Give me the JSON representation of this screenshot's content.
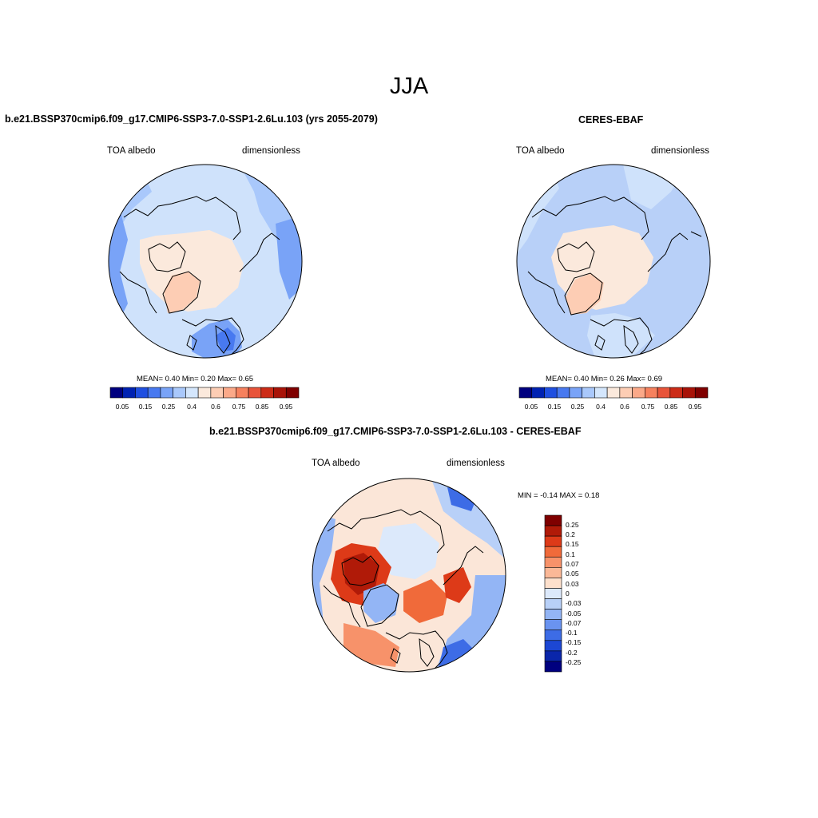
{
  "figure": {
    "title": "JJA"
  },
  "panels": [
    {
      "title": "b.e21.BSSP370cmip6.f09_g17.CMIP6-SSP3-7.0-SSP1-2.6Lu.103 (yrs 2055-2079)",
      "left_label": "TOA albedo",
      "right_label": "dimensionless",
      "stats": "MEAN=   0.40  Min=   0.20  Max=   0.65",
      "colorbar_ticks": [
        "0.05",
        "0.15",
        "0.25",
        "0.4",
        "0.6",
        "0.75",
        "0.85",
        "0.95"
      ]
    },
    {
      "title": "CERES-EBAF",
      "left_label": "TOA albedo",
      "right_label": "dimensionless",
      "stats": "MEAN=   0.40  Min=   0.26  Max=   0.69",
      "colorbar_ticks": [
        "0.05",
        "0.15",
        "0.25",
        "0.4",
        "0.6",
        "0.75",
        "0.85",
        "0.95"
      ]
    },
    {
      "title": "b.e21.BSSP370cmip6.f09_g17.CMIP6-SSP3-7.0-SSP1-2.6Lu.103 - CERES-EBAF",
      "left_label": "TOA albedo",
      "right_label": "dimensionless",
      "stats": "MIN =  -0.14 MAX =   0.18",
      "colorbar_ticks": [
        "0.25",
        "0.2",
        "0.15",
        "0.1",
        "0.07",
        "0.05",
        "0.03",
        "0",
        "-0.03",
        "-0.05",
        "-0.07",
        "-0.1",
        "-0.15",
        "-0.2",
        "-0.25"
      ]
    }
  ],
  "colors": {
    "albedo_scale": [
      "#00007f",
      "#0022b2",
      "#1f4fe0",
      "#4879f0",
      "#79a3f7",
      "#a9c8fb",
      "#d4e6fc",
      "#fbe9dc",
      "#fdcdb4",
      "#fba989",
      "#f6815e",
      "#e8543a",
      "#cc2b17",
      "#a81308",
      "#7f0000"
    ],
    "diff_scale": [
      "#7f0000",
      "#b01a08",
      "#dd3a18",
      "#f06a3a",
      "#f7926a",
      "#fbb897",
      "#fde0cc",
      "#dce9fb",
      "#b8d0f8",
      "#93b5f5",
      "#6a93f0",
      "#3d6ce6",
      "#1c47d4",
      "#0a26aa",
      "#00007f"
    ],
    "map_background_model": "#cfe2fb",
    "map_background_obs": "#b8d0f8",
    "map_background_diff": "#fbe6d8",
    "coastline": "#000000"
  }
}
